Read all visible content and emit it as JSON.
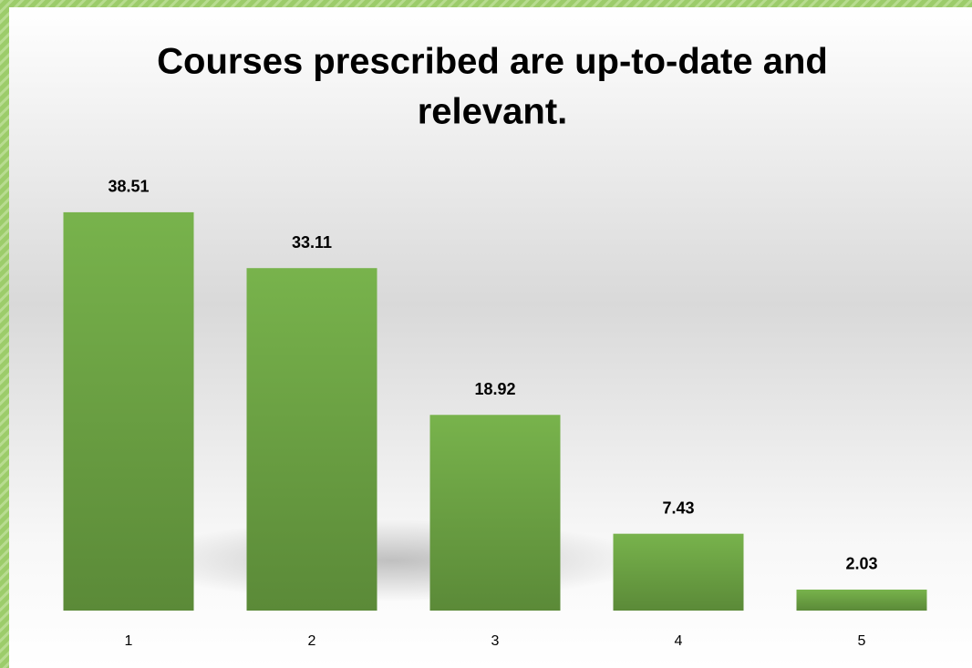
{
  "chart_data": {
    "type": "bar",
    "title": [
      "Courses prescribed are up-to-date and",
      "relevant."
    ],
    "categories": [
      "1",
      "2",
      "3",
      "4",
      "5"
    ],
    "values": [
      38.51,
      33.11,
      18.92,
      7.43,
      2.03
    ]
  }
}
